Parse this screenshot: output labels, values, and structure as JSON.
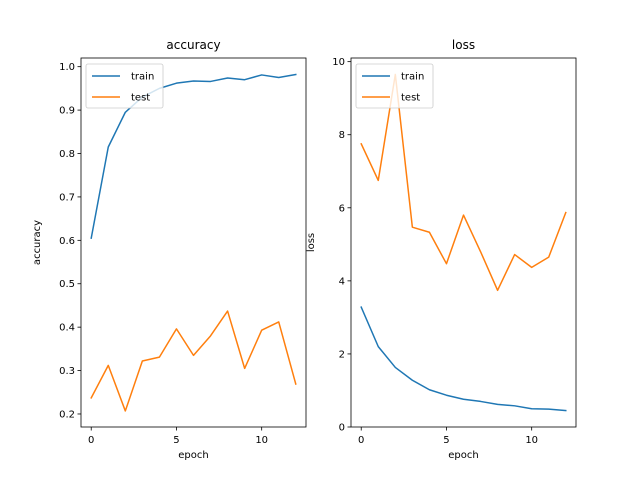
{
  "chart_data": [
    {
      "type": "line",
      "title": "accuracy",
      "xlabel": "epoch",
      "ylabel": "accuracy",
      "xlim": [
        -0.6,
        12.6
      ],
      "ylim": [
        0.17,
        1.02
      ],
      "xticks": [
        0,
        5,
        10
      ],
      "xtick_labels": [
        "0",
        "5",
        "10"
      ],
      "yticks": [
        0.2,
        0.3,
        0.4,
        0.5,
        0.6,
        0.7,
        0.8,
        0.9,
        1.0
      ],
      "ytick_labels": [
        "0.2",
        "0.3",
        "0.4",
        "0.5",
        "0.6",
        "0.7",
        "0.8",
        "0.9",
        "1.0"
      ],
      "grid": false,
      "legend": "top-left",
      "x": [
        0,
        1,
        2,
        3,
        4,
        5,
        6,
        7,
        8,
        9,
        10,
        11,
        12
      ],
      "series": [
        {
          "name": "train",
          "color": "#1f77b4",
          "values": [
            0.605,
            0.815,
            0.895,
            0.93,
            0.95,
            0.962,
            0.967,
            0.966,
            0.974,
            0.97,
            0.981,
            0.975,
            0.982
          ]
        },
        {
          "name": "test",
          "color": "#ff7f0e",
          "values": [
            0.237,
            0.312,
            0.207,
            0.322,
            0.331,
            0.396,
            0.335,
            0.38,
            0.437,
            0.305,
            0.393,
            0.412,
            0.269
          ]
        }
      ]
    },
    {
      "type": "line",
      "title": "loss",
      "xlabel": "epoch",
      "ylabel": "loss",
      "xlim": [
        -0.6,
        12.6
      ],
      "ylim": [
        0,
        10.1
      ],
      "xticks": [
        0,
        5,
        10
      ],
      "xtick_labels": [
        "0",
        "5",
        "10"
      ],
      "yticks": [
        0,
        2,
        4,
        6,
        8,
        10
      ],
      "ytick_labels": [
        "0",
        "2",
        "4",
        "6",
        "8",
        "10"
      ],
      "grid": false,
      "legend": "top-left",
      "x": [
        0,
        1,
        2,
        3,
        4,
        5,
        6,
        7,
        8,
        9,
        10,
        11,
        12
      ],
      "series": [
        {
          "name": "train",
          "color": "#1f77b4",
          "values": [
            3.28,
            2.2,
            1.63,
            1.28,
            1.02,
            0.87,
            0.76,
            0.7,
            0.62,
            0.58,
            0.5,
            0.49,
            0.45
          ]
        },
        {
          "name": "test",
          "color": "#ff7f0e",
          "values": [
            7.75,
            6.75,
            9.65,
            5.47,
            5.33,
            4.47,
            5.8,
            4.8,
            3.74,
            4.72,
            4.37,
            4.65,
            5.87
          ]
        }
      ]
    }
  ]
}
